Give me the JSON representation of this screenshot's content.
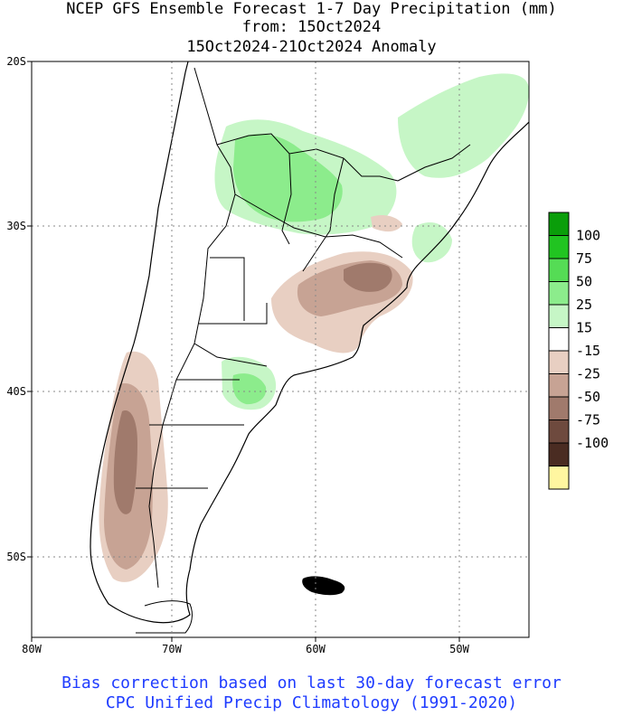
{
  "title": {
    "line1": "NCEP GFS Ensemble Forecast 1-7 Day Precipitation (mm)",
    "line2": "from: 15Oct2024",
    "line3": "15Oct2024-21Oct2024 Anomaly"
  },
  "axes": {
    "lat_labels": [
      "20S",
      "30S",
      "40S",
      "50S"
    ],
    "lon_labels": [
      "80W",
      "70W",
      "60W",
      "50W"
    ]
  },
  "legend": {
    "labels": [
      "100",
      "75",
      "50",
      "25",
      "15",
      "-15",
      "-25",
      "-50",
      "-75",
      "-100"
    ],
    "colors": [
      "#0a9e0a",
      "#21c421",
      "#55dc55",
      "#8cec8c",
      "#c6f6c6",
      "#ffffff",
      "#e8cfc2",
      "#c7a394",
      "#a07a6c",
      "#6e4a3e",
      "#4a2c22",
      "#fff6a0"
    ]
  },
  "footer": {
    "line1": "Bias correction based on last 30-day forecast error",
    "line2": "CPC Unified Precip Climatology (1991-2020)"
  }
}
